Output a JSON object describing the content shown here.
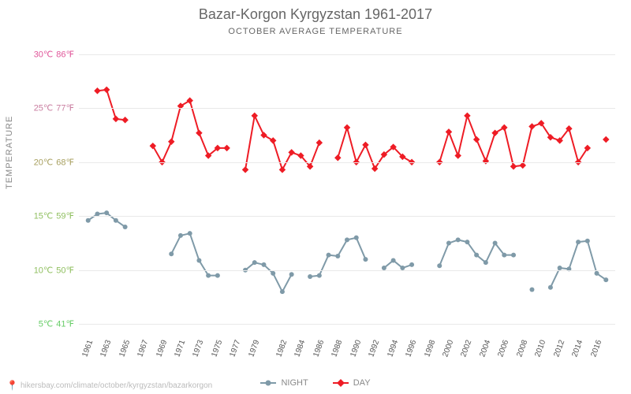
{
  "title": "Bazar-Korgon Kyrgyzstan 1961-2017",
  "subtitle": "OCTOBER AVERAGE TEMPERATURE",
  "ylabel": "TEMPERATURE",
  "footer_url": "hikersbay.com/climate/october/kyrgyzstan/bazarkorgon",
  "legend": {
    "night_label": "NIGHT",
    "day_label": "DAY"
  },
  "chart": {
    "type": "line",
    "x_years": [
      1961,
      1962,
      1963,
      1964,
      1965,
      1966,
      1967,
      1968,
      1969,
      1970,
      1971,
      1972,
      1973,
      1974,
      1975,
      1976,
      1977,
      1978,
      1979,
      1980,
      1981,
      1982,
      1983,
      1984,
      1985,
      1986,
      1987,
      1988,
      1989,
      1990,
      1991,
      1992,
      1993,
      1994,
      1995,
      1996,
      1997,
      1998,
      1999,
      2000,
      2001,
      2002,
      2003,
      2004,
      2005,
      2006,
      2007,
      2008,
      2009,
      2010,
      2011,
      2012,
      2013,
      2014,
      2015,
      2016,
      2017
    ],
    "x_tick_years": [
      1961,
      1963,
      1965,
      1967,
      1969,
      1971,
      1973,
      1975,
      1977,
      1979,
      1982,
      1984,
      1986,
      1988,
      1990,
      1992,
      1994,
      1996,
      1998,
      2000,
      2002,
      2004,
      2006,
      2008,
      2010,
      2012,
      2014,
      2016
    ],
    "x_range": [
      1960,
      2018
    ],
    "y_range_c": [
      4,
      31
    ],
    "y_ticks": [
      {
        "c": "5℃",
        "f": "41℉",
        "val": 5,
        "color": "#66cc66"
      },
      {
        "c": "10℃",
        "f": "50℉",
        "val": 10,
        "color": "#8fbf5f"
      },
      {
        "c": "15℃",
        "f": "59℉",
        "val": 15,
        "color": "#8fbf5f"
      },
      {
        "c": "20℃",
        "f": "68℉",
        "val": 20,
        "color": "#a8a060"
      },
      {
        "c": "25℃",
        "f": "77℉",
        "val": 25,
        "color": "#c97da0"
      },
      {
        "c": "30℃",
        "f": "86℉",
        "val": 30,
        "color": "#e05599"
      }
    ],
    "grid_color": "#e9e9e9",
    "background_color": "#ffffff",
    "series": {
      "day": {
        "color": "#ee1c25",
        "marker": "diamond",
        "marker_size": 6,
        "line_width": 2,
        "values": {
          "1962": 26.6,
          "1963": 26.7,
          "1964": 24.0,
          "1965": 23.9,
          "1968": 21.5,
          "1969": 20.0,
          "1970": 21.9,
          "1971": 25.2,
          "1972": 25.7,
          "1973": 22.7,
          "1974": 20.6,
          "1975": 21.3,
          "1976": 21.3,
          "1978": 19.3,
          "1979": 24.3,
          "1980": 22.5,
          "1981": 22.0,
          "1982": 19.3,
          "1983": 20.9,
          "1984": 20.6,
          "1985": 19.6,
          "1986": 21.8,
          "1988": 20.4,
          "1989": 23.2,
          "1990": 20.0,
          "1991": 21.6,
          "1992": 19.4,
          "1993": 20.7,
          "1994": 21.4,
          "1995": 20.5,
          "1996": 20.0,
          "1999": 20.0,
          "2000": 22.8,
          "2001": 20.6,
          "2002": 24.3,
          "2003": 22.1,
          "2004": 20.1,
          "2005": 22.7,
          "2006": 23.2,
          "2007": 19.6,
          "2008": 19.7,
          "2009": 23.3,
          "2010": 23.6,
          "2011": 22.3,
          "2012": 22.0,
          "2013": 23.1,
          "2014": 20.0,
          "2015": 21.3,
          "2017": 22.1
        }
      },
      "night": {
        "color": "#7f9aa8",
        "marker": "circle",
        "marker_size": 6,
        "line_width": 2,
        "values": {
          "1961": 14.6,
          "1962": 15.2,
          "1963": 15.3,
          "1964": 14.6,
          "1965": 14.0,
          "1970": 11.5,
          "1971": 13.2,
          "1972": 13.4,
          "1973": 10.9,
          "1974": 9.5,
          "1975": 9.5,
          "1978": 10.0,
          "1979": 10.7,
          "1980": 10.5,
          "1981": 9.7,
          "1982": 8.0,
          "1983": 9.6,
          "1985": 9.4,
          "1986": 9.5,
          "1987": 11.4,
          "1988": 11.3,
          "1989": 12.8,
          "1990": 13.0,
          "1991": 11.0,
          "1993": 10.2,
          "1994": 10.9,
          "1995": 10.2,
          "1996": 10.5,
          "1999": 10.4,
          "2000": 12.5,
          "2001": 12.8,
          "2002": 12.6,
          "2003": 11.4,
          "2004": 10.7,
          "2005": 12.5,
          "2006": 11.4,
          "2007": 11.4,
          "2009": 8.2,
          "2011": 8.4,
          "2012": 10.2,
          "2013": 10.1,
          "2014": 12.6,
          "2015": 12.7,
          "2016": 9.7,
          "2017": 9.1
        }
      }
    }
  }
}
